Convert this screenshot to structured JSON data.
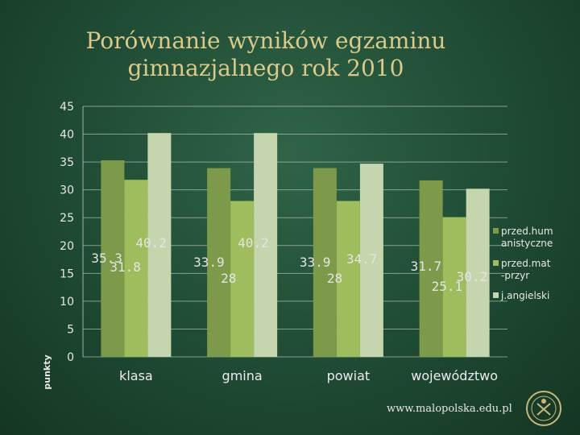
{
  "title": {
    "line1": "Porównanie wyników egzaminu",
    "line2": "gimnazjalnego rok 2010"
  },
  "chart_data": {
    "type": "bar",
    "ylabel": "punkty",
    "ylim": [
      0,
      45
    ],
    "yticks": [
      0,
      5,
      10,
      15,
      20,
      25,
      30,
      35,
      40,
      45
    ],
    "categories": [
      "klasa",
      "gmina",
      "powiat",
      "województwo"
    ],
    "series": [
      {
        "name": "przed.humanistyczne",
        "legend_lines": [
          "przed.hum",
          "anistyczne"
        ],
        "color": "#7d9a4a",
        "values": [
          35.3,
          33.9,
          33.9,
          31.7
        ]
      },
      {
        "name": "przed.mat-przyr",
        "legend_lines": [
          "przed.mat",
          "-przyr"
        ],
        "color": "#9fbd5c",
        "values": [
          31.8,
          28,
          28,
          25.1
        ]
      },
      {
        "name": "j.angielski",
        "legend_lines": [
          "j.angielski"
        ],
        "color": "#c5d6ae",
        "values": [
          40.2,
          40.2,
          34.7,
          30.2
        ]
      }
    ],
    "data_labels": [
      [
        "35.3",
        "31.8",
        "40.2"
      ],
      [
        "33.9",
        "28",
        "40.2"
      ],
      [
        "33.9",
        "28",
        "34.7"
      ],
      [
        "31.7",
        "25.1",
        "30.2"
      ]
    ],
    "grid": true,
    "legend_position": "right"
  },
  "footer": {
    "url": "www.malopolska.edu.pl"
  },
  "icons": {
    "seal": "emblem-icon"
  }
}
